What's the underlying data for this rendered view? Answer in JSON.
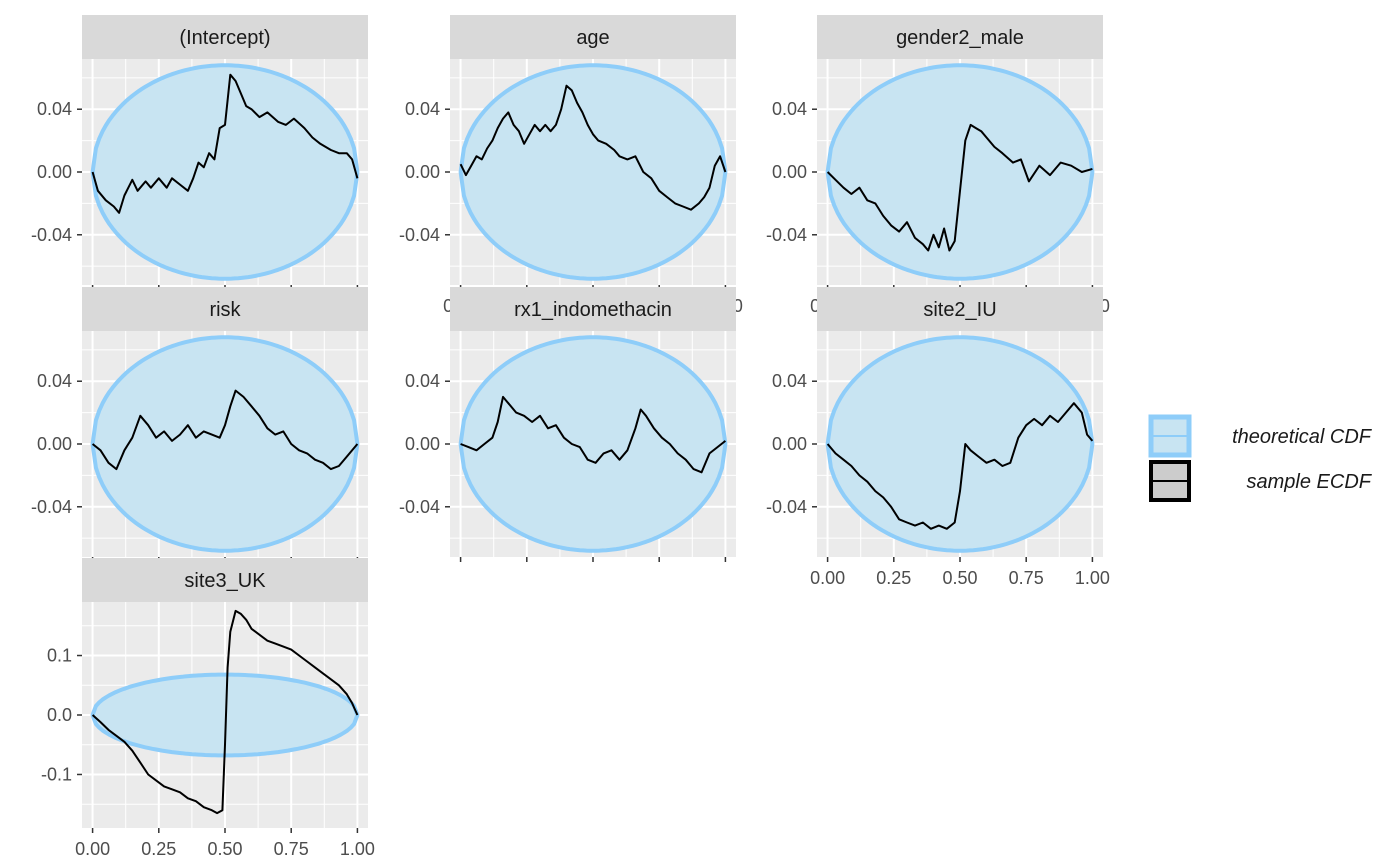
{
  "colors": {
    "panel_bg": "#ebebeb",
    "grid": "#ffffff",
    "strip_bg": "#d9d9d9",
    "band_fill": "#c8e4f2",
    "band_stroke": "#8ecdf9",
    "ecdf": "#000000",
    "tick_text": "#4d4d4d"
  },
  "chart_data": {
    "type": "line",
    "legend": {
      "position": "right",
      "entries": [
        {
          "label": "theoretical CDF",
          "kind": "band"
        },
        {
          "label": "sample ECDF",
          "kind": "line"
        }
      ]
    },
    "grid": true,
    "x_ticks": [
      "0.00",
      "0.25",
      "0.50",
      "0.75",
      "1.00"
    ],
    "x_range": [
      0,
      1
    ],
    "panels": [
      {
        "title": "(Intercept)",
        "ylim": [
          -0.072,
          0.072
        ],
        "yticks": [
          -0.04,
          0.0,
          0.04
        ],
        "ytick_labels": [
          "-0.04",
          "0.00",
          "0.04"
        ],
        "band_halfwidth": 0.068,
        "show_x_labels": false,
        "x": [
          0,
          0.02,
          0.05,
          0.08,
          0.1,
          0.12,
          0.15,
          0.17,
          0.2,
          0.22,
          0.25,
          0.28,
          0.3,
          0.33,
          0.36,
          0.38,
          0.4,
          0.42,
          0.44,
          0.46,
          0.48,
          0.5,
          0.52,
          0.54,
          0.56,
          0.58,
          0.6,
          0.63,
          0.66,
          0.7,
          0.73,
          0.76,
          0.8,
          0.83,
          0.86,
          0.9,
          0.93,
          0.96,
          0.98,
          1
        ],
        "y": [
          0,
          -0.012,
          -0.018,
          -0.022,
          -0.026,
          -0.015,
          -0.005,
          -0.012,
          -0.006,
          -0.01,
          -0.004,
          -0.01,
          -0.004,
          -0.008,
          -0.012,
          -0.004,
          0.006,
          0.003,
          0.012,
          0.008,
          0.028,
          0.03,
          0.062,
          0.058,
          0.05,
          0.042,
          0.04,
          0.035,
          0.038,
          0.032,
          0.03,
          0.034,
          0.028,
          0.022,
          0.018,
          0.014,
          0.012,
          0.012,
          0.008,
          -0.004
        ]
      },
      {
        "title": "age",
        "ylim": [
          -0.072,
          0.072
        ],
        "yticks": [
          -0.04,
          0.0,
          0.04
        ],
        "ytick_labels": [
          "-0.04",
          "0.00",
          "0.04"
        ],
        "band_halfwidth": 0.068,
        "show_x_labels": true,
        "x": [
          0,
          0.02,
          0.04,
          0.06,
          0.08,
          0.1,
          0.12,
          0.14,
          0.16,
          0.18,
          0.2,
          0.22,
          0.24,
          0.26,
          0.28,
          0.3,
          0.32,
          0.34,
          0.36,
          0.38,
          0.4,
          0.42,
          0.44,
          0.46,
          0.48,
          0.5,
          0.52,
          0.55,
          0.58,
          0.6,
          0.63,
          0.66,
          0.69,
          0.72,
          0.75,
          0.78,
          0.81,
          0.84,
          0.87,
          0.9,
          0.92,
          0.94,
          0.96,
          0.98,
          1
        ],
        "y": [
          0.005,
          -0.002,
          0.004,
          0.01,
          0.008,
          0.015,
          0.02,
          0.028,
          0.034,
          0.038,
          0.03,
          0.026,
          0.018,
          0.024,
          0.03,
          0.026,
          0.03,
          0.026,
          0.03,
          0.04,
          0.055,
          0.052,
          0.044,
          0.038,
          0.03,
          0.024,
          0.02,
          0.018,
          0.014,
          0.01,
          0.008,
          0.01,
          0.0,
          -0.004,
          -0.012,
          -0.016,
          -0.02,
          -0.022,
          -0.024,
          -0.02,
          -0.016,
          -0.01,
          0.004,
          0.01,
          0.0
        ]
      },
      {
        "title": "gender2_male",
        "ylim": [
          -0.072,
          0.072
        ],
        "yticks": [
          -0.04,
          0.0,
          0.04
        ],
        "ytick_labels": [
          "-0.04",
          "0.00",
          "0.04"
        ],
        "band_halfwidth": 0.068,
        "show_x_labels": true,
        "x": [
          0,
          0.03,
          0.06,
          0.09,
          0.12,
          0.15,
          0.18,
          0.21,
          0.24,
          0.27,
          0.3,
          0.33,
          0.36,
          0.38,
          0.4,
          0.42,
          0.44,
          0.46,
          0.48,
          0.5,
          0.52,
          0.54,
          0.56,
          0.58,
          0.6,
          0.63,
          0.66,
          0.7,
          0.73,
          0.76,
          0.8,
          0.84,
          0.88,
          0.92,
          0.96,
          1
        ],
        "y": [
          0,
          -0.005,
          -0.01,
          -0.014,
          -0.01,
          -0.018,
          -0.02,
          -0.028,
          -0.034,
          -0.038,
          -0.032,
          -0.042,
          -0.046,
          -0.05,
          -0.04,
          -0.048,
          -0.036,
          -0.05,
          -0.044,
          -0.012,
          0.02,
          0.03,
          0.028,
          0.026,
          0.022,
          0.016,
          0.012,
          0.006,
          0.008,
          -0.006,
          0.004,
          -0.002,
          0.006,
          0.004,
          0.0,
          0.002
        ]
      },
      {
        "title": "risk",
        "ylim": [
          -0.072,
          0.072
        ],
        "yticks": [
          -0.04,
          0.0,
          0.04
        ],
        "ytick_labels": [
          "-0.04",
          "0.00",
          "0.04"
        ],
        "band_halfwidth": 0.068,
        "show_x_labels": false,
        "x": [
          0,
          0.03,
          0.06,
          0.09,
          0.12,
          0.15,
          0.18,
          0.21,
          0.24,
          0.27,
          0.3,
          0.33,
          0.36,
          0.39,
          0.42,
          0.45,
          0.48,
          0.5,
          0.52,
          0.54,
          0.57,
          0.6,
          0.63,
          0.66,
          0.69,
          0.72,
          0.75,
          0.78,
          0.81,
          0.84,
          0.87,
          0.9,
          0.93,
          0.96,
          1
        ],
        "y": [
          0,
          -0.004,
          -0.012,
          -0.016,
          -0.004,
          0.004,
          0.018,
          0.012,
          0.004,
          0.008,
          0.002,
          0.006,
          0.012,
          0.004,
          0.008,
          0.006,
          0.004,
          0.012,
          0.024,
          0.034,
          0.03,
          0.024,
          0.018,
          0.01,
          0.006,
          0.008,
          0.0,
          -0.004,
          -0.006,
          -0.01,
          -0.012,
          -0.016,
          -0.014,
          -0.008,
          0.0
        ]
      },
      {
        "title": "rx1_indomethacin",
        "ylim": [
          -0.072,
          0.072
        ],
        "yticks": [
          -0.04,
          0.0,
          0.04
        ],
        "ytick_labels": [
          "-0.04",
          "0.00",
          "0.04"
        ],
        "band_halfwidth": 0.068,
        "show_x_labels": false,
        "x": [
          0,
          0.03,
          0.06,
          0.09,
          0.12,
          0.14,
          0.16,
          0.18,
          0.21,
          0.24,
          0.27,
          0.3,
          0.33,
          0.36,
          0.39,
          0.42,
          0.45,
          0.48,
          0.51,
          0.54,
          0.57,
          0.6,
          0.63,
          0.66,
          0.68,
          0.7,
          0.73,
          0.76,
          0.79,
          0.82,
          0.85,
          0.88,
          0.91,
          0.94,
          0.97,
          1
        ],
        "y": [
          0,
          -0.002,
          -0.004,
          0.0,
          0.004,
          0.014,
          0.03,
          0.026,
          0.02,
          0.018,
          0.014,
          0.018,
          0.01,
          0.012,
          0.004,
          0.0,
          -0.002,
          -0.01,
          -0.012,
          -0.006,
          -0.004,
          -0.01,
          -0.004,
          0.01,
          0.022,
          0.018,
          0.01,
          0.004,
          0.0,
          -0.006,
          -0.01,
          -0.016,
          -0.018,
          -0.006,
          -0.002,
          0.002
        ]
      },
      {
        "title": "site2_IU",
        "ylim": [
          -0.072,
          0.072
        ],
        "yticks": [
          -0.04,
          0.0,
          0.04
        ],
        "ytick_labels": [
          "-0.04",
          "0.00",
          "0.04"
        ],
        "band_halfwidth": 0.068,
        "show_x_labels": true,
        "x": [
          0,
          0.03,
          0.06,
          0.09,
          0.12,
          0.15,
          0.18,
          0.21,
          0.24,
          0.27,
          0.3,
          0.33,
          0.36,
          0.39,
          0.42,
          0.45,
          0.48,
          0.5,
          0.52,
          0.54,
          0.57,
          0.6,
          0.63,
          0.66,
          0.69,
          0.72,
          0.75,
          0.78,
          0.81,
          0.84,
          0.87,
          0.9,
          0.93,
          0.96,
          0.98,
          1
        ],
        "y": [
          0,
          -0.006,
          -0.01,
          -0.014,
          -0.02,
          -0.024,
          -0.03,
          -0.034,
          -0.04,
          -0.048,
          -0.05,
          -0.052,
          -0.05,
          -0.054,
          -0.052,
          -0.054,
          -0.05,
          -0.03,
          0.0,
          -0.004,
          -0.008,
          -0.012,
          -0.01,
          -0.014,
          -0.012,
          0.004,
          0.012,
          0.016,
          0.012,
          0.018,
          0.014,
          0.02,
          0.026,
          0.02,
          0.006,
          0.002
        ]
      },
      {
        "title": "site3_UK",
        "ylim": [
          -0.19,
          0.19
        ],
        "yticks": [
          -0.1,
          0.0,
          0.1
        ],
        "ytick_labels": [
          "-0.1",
          "0.0",
          "0.1"
        ],
        "band_halfwidth": 0.068,
        "show_x_labels": true,
        "x": [
          0,
          0.03,
          0.06,
          0.09,
          0.12,
          0.15,
          0.18,
          0.21,
          0.24,
          0.27,
          0.3,
          0.33,
          0.36,
          0.39,
          0.42,
          0.45,
          0.47,
          0.49,
          0.5,
          0.51,
          0.52,
          0.54,
          0.56,
          0.58,
          0.6,
          0.63,
          0.66,
          0.69,
          0.72,
          0.75,
          0.78,
          0.81,
          0.84,
          0.87,
          0.9,
          0.93,
          0.96,
          0.98,
          1
        ],
        "y": [
          0,
          -0.012,
          -0.025,
          -0.035,
          -0.045,
          -0.06,
          -0.08,
          -0.1,
          -0.11,
          -0.12,
          -0.125,
          -0.13,
          -0.14,
          -0.145,
          -0.155,
          -0.16,
          -0.165,
          -0.16,
          -0.05,
          0.08,
          0.14,
          0.175,
          0.17,
          0.16,
          0.145,
          0.135,
          0.125,
          0.12,
          0.115,
          0.11,
          0.1,
          0.09,
          0.08,
          0.07,
          0.06,
          0.05,
          0.035,
          0.02,
          0.0
        ]
      }
    ]
  }
}
